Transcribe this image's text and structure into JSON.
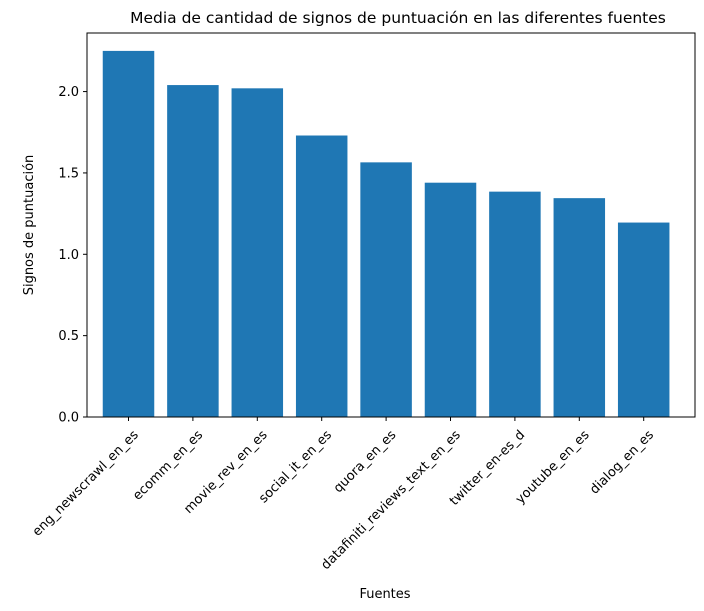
{
  "chart_data": {
    "type": "bar",
    "title": "Media de cantidad de signos de puntuación en las diferentes fuentes",
    "xlabel": "Fuentes",
    "ylabel": "Signos de puntuación",
    "categories": [
      "eng_newscrawl_en_es",
      "ecomm_en_es",
      "movie_rev_en_es",
      "social_it_en_es",
      "quora_en_es",
      "datafiniti_reviews_text_en_es",
      "twitter_en-es_d",
      "youtube_en_es",
      "dialog_en_es"
    ],
    "values": [
      2.25,
      2.04,
      2.02,
      1.73,
      1.565,
      1.44,
      1.385,
      1.345,
      1.195
    ],
    "ylim": [
      0,
      2.36
    ],
    "yticks": [
      0.0,
      0.5,
      1.0,
      1.5,
      2.0
    ],
    "ytick_labels": [
      "0.0",
      "0.5",
      "1.0",
      "1.5",
      "2.0"
    ],
    "bar_color": "#1f77b4",
    "grid": false,
    "legend": "none"
  }
}
